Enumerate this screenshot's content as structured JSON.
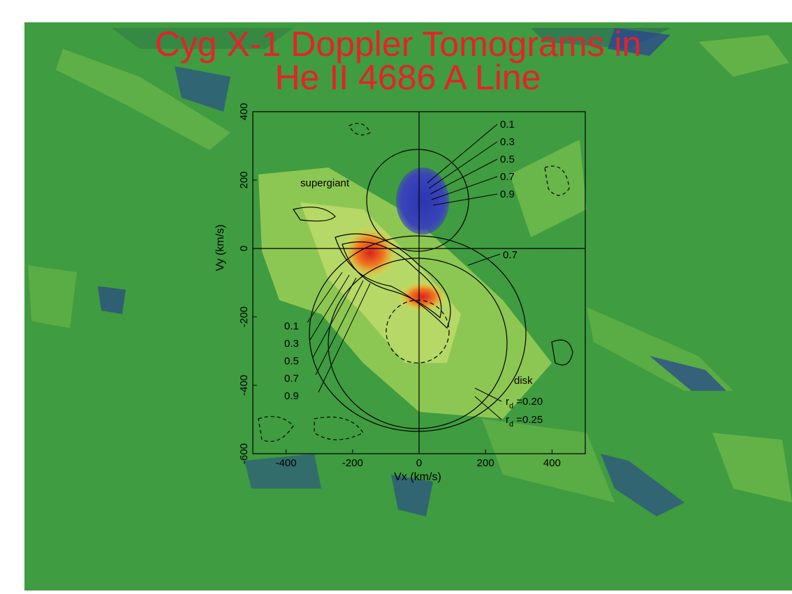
{
  "chart_data": {
    "type": "doppler-tomogram",
    "title": [
      "Cyg X-1 Doppler Tomograms in",
      "He II 4686 A Line"
    ],
    "x_label": "Vx (km/s)",
    "y_label": "Vy (km/s)",
    "xlim": [
      -500,
      500
    ],
    "xticks": [
      -400,
      -200,
      0,
      200,
      400
    ],
    "ylim": [
      -600,
      400
    ],
    "yticks": [
      400,
      200,
      0,
      -200,
      -400,
      -600
    ],
    "annotations": {
      "supergiant": "supergiant",
      "right_levels": [
        "0.1",
        "0.3",
        "0.5",
        "0.7",
        "0.9"
      ],
      "left_levels": [
        "0.1",
        "0.3",
        "0.5",
        "0.7",
        "0.9"
      ],
      "disk_level": "0.7",
      "disk": "disk",
      "radii": [
        {
          "base": "r",
          "sub": "d",
          "text": " =0.20"
        },
        {
          "base": "r",
          "sub": "d",
          "text": " =0.25"
        }
      ]
    }
  }
}
